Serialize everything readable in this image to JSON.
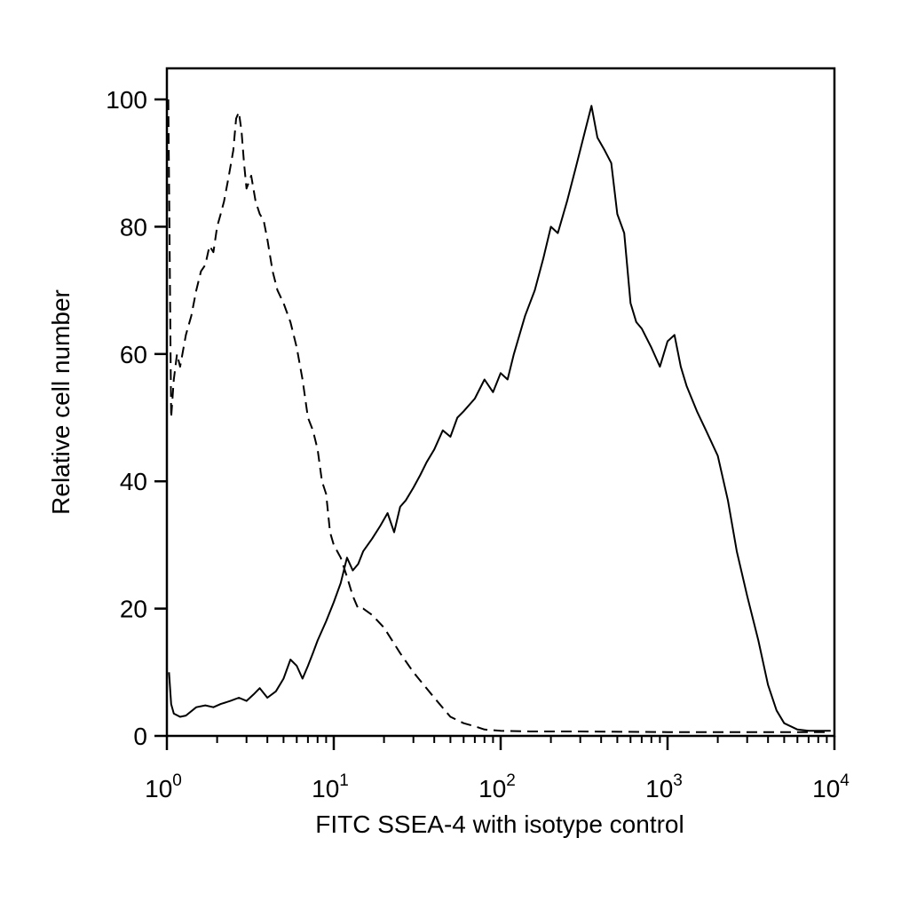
{
  "chart_data": {
    "type": "line",
    "title": "",
    "xlabel": "FITC SSEA-4 with isotype control",
    "ylabel": "Relative cell number",
    "x_scale": "log10",
    "xlim": [
      1,
      10000
    ],
    "ylim": [
      0,
      100
    ],
    "x_ticks": [
      {
        "base": "10",
        "exp": "0",
        "value": 1
      },
      {
        "base": "10",
        "exp": "1",
        "value": 10
      },
      {
        "base": "10",
        "exp": "2",
        "value": 100
      },
      {
        "base": "10",
        "exp": "3",
        "value": 1000
      },
      {
        "base": "10",
        "exp": "4",
        "value": 10000
      }
    ],
    "y_ticks": [
      "0",
      "20",
      "40",
      "60",
      "80",
      "100"
    ],
    "grid": false,
    "legend": "none",
    "series": [
      {
        "style": "dashed",
        "color": "#000000",
        "x": [
          1.02,
          1.06,
          1.1,
          1.15,
          1.2,
          1.3,
          1.4,
          1.5,
          1.6,
          1.7,
          1.8,
          1.9,
          2.0,
          2.1,
          2.2,
          2.35,
          2.5,
          2.6,
          2.7,
          2.8,
          2.9,
          3.0,
          3.2,
          3.4,
          3.6,
          3.8,
          4.0,
          4.3,
          4.6,
          5.0,
          5.5,
          6.0,
          6.5,
          7.0,
          7.5,
          8.0,
          8.5,
          9.0,
          9.5,
          10,
          11,
          12,
          13,
          14,
          15,
          17,
          20,
          25,
          30,
          40,
          50,
          60,
          70,
          80,
          100,
          150,
          300,
          1000,
          3000,
          5000,
          9500
        ],
        "y": [
          100,
          50,
          56,
          60,
          58,
          63,
          66,
          70,
          73,
          74,
          77,
          76,
          80,
          82,
          84,
          88,
          92,
          97,
          98,
          95,
          90,
          86,
          88,
          84,
          82,
          81,
          78,
          73,
          70,
          68,
          65,
          61,
          56,
          50,
          48,
          45,
          40,
          38,
          32,
          30,
          28,
          25,
          22,
          20,
          20,
          19,
          17,
          13,
          10,
          6,
          3,
          2,
          1.5,
          1,
          0.8,
          0.7,
          0.7,
          0.6,
          0.6,
          0.6,
          0.6
        ]
      },
      {
        "style": "solid",
        "color": "#000000",
        "x": [
          1.03,
          1.06,
          1.1,
          1.2,
          1.3,
          1.5,
          1.7,
          1.9,
          2.1,
          2.4,
          2.7,
          3.0,
          3.3,
          3.6,
          4.0,
          4.5,
          5.0,
          5.5,
          6.0,
          6.5,
          7.0,
          7.5,
          8.0,
          9.0,
          10,
          11,
          12,
          13,
          14,
          15,
          17,
          19,
          21,
          23,
          25,
          27,
          30,
          33,
          36,
          40,
          45,
          50,
          55,
          60,
          70,
          80,
          90,
          100,
          110,
          120,
          140,
          160,
          180,
          200,
          220,
          250,
          280,
          320,
          350,
          380,
          420,
          460,
          500,
          550,
          600,
          650,
          700,
          800,
          900,
          1000,
          1100,
          1200,
          1300,
          1500,
          1700,
          2000,
          2300,
          2600,
          3000,
          3500,
          4000,
          4500,
          5000,
          6000,
          7000,
          9500
        ],
        "y": [
          10,
          5,
          3.5,
          3,
          3.2,
          4.5,
          4.8,
          4.5,
          5,
          5.5,
          6,
          5.5,
          6.5,
          7.5,
          6,
          7,
          9,
          12,
          11,
          9,
          11,
          13,
          15,
          18,
          21,
          24,
          28,
          26,
          27,
          29,
          31,
          33,
          35,
          32,
          36,
          37,
          39,
          41,
          43,
          45,
          48,
          47,
          50,
          51,
          53,
          56,
          54,
          57,
          56,
          60,
          66,
          70,
          75,
          80,
          79,
          84,
          89,
          95,
          99,
          94,
          92,
          90,
          82,
          79,
          68,
          65,
          64,
          61,
          58,
          62,
          63,
          58,
          55,
          51,
          48,
          44,
          37,
          29,
          22,
          15,
          8,
          4,
          2,
          1,
          0.8,
          0.8
        ]
      }
    ]
  }
}
